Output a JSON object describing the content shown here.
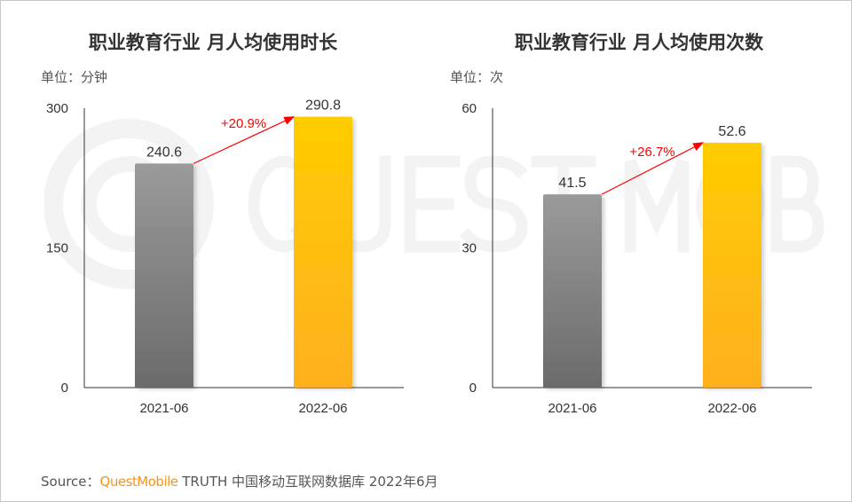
{
  "watermark": "QUESTMOBILE",
  "colors": {
    "gray_top": "#9a9a9a",
    "gray_bottom": "#6b6b6b",
    "yellow_top": "#ffcc00",
    "yellow_bottom": "#ffb020",
    "growth": "#ff0000",
    "brand": "#f7941d"
  },
  "chart_data": [
    {
      "type": "bar",
      "title": "职业教育行业 月人均使用时长",
      "unit": "单位：分钟",
      "categories": [
        "2021-06",
        "2022-06"
      ],
      "values": [
        240.6,
        290.8
      ],
      "value_labels": [
        "240.6",
        "290.8"
      ],
      "ylim": [
        0,
        300
      ],
      "yticks": [
        "0",
        "150",
        "300"
      ],
      "ytick_values": [
        0,
        150,
        300
      ],
      "growth": "+20.9%",
      "grid": false
    },
    {
      "type": "bar",
      "title": "职业教育行业 月人均使用次数",
      "unit": "单位：次",
      "categories": [
        "2021-06",
        "2022-06"
      ],
      "values": [
        41.5,
        52.6
      ],
      "value_labels": [
        "41.5",
        "52.6"
      ],
      "ylim": [
        0,
        60
      ],
      "yticks": [
        "0",
        "30",
        "60"
      ],
      "ytick_values": [
        0,
        30,
        60
      ],
      "growth": "+26.7%",
      "grid": false
    }
  ],
  "source": {
    "label": "Source：",
    "brand": "QuestMobile",
    "text": "TRUTH 中国移动互联网数据库 2022年6月"
  }
}
